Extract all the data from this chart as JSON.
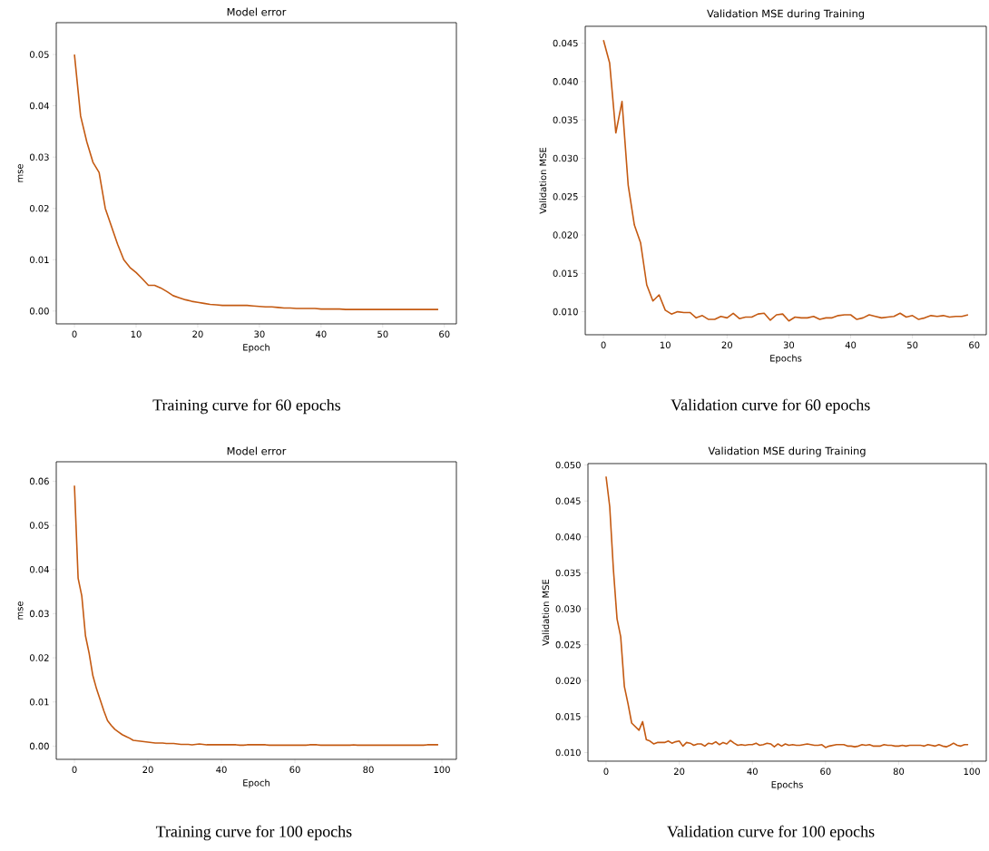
{
  "chart_data": [
    {
      "type": "line",
      "title": "Model error",
      "xlabel": "Epoch",
      "ylabel": "mse",
      "color": "#c45a12",
      "annotations": [
        "Training curve for 60 epochs"
      ],
      "xlim": [
        -2.95,
        61.95
      ],
      "ylim": [
        -0.0025,
        0.0562
      ],
      "xticks": [
        0,
        10,
        20,
        30,
        40,
        50,
        60
      ],
      "yticks": [
        {
          "value": 0,
          "label": "0.00"
        },
        {
          "value": 0.01,
          "label": "0.01"
        },
        {
          "value": 0.02,
          "label": "0.02"
        },
        {
          "value": 0.03,
          "label": "0.03"
        },
        {
          "value": 0.04,
          "label": "0.04"
        },
        {
          "value": 0.05,
          "label": "0.05"
        }
      ],
      "x": [
        0,
        1,
        2,
        3,
        4,
        5,
        6,
        7,
        8,
        9,
        10,
        11,
        12,
        13,
        14,
        15,
        16,
        17,
        18,
        19,
        20,
        21,
        22,
        23,
        24,
        25,
        26,
        27,
        28,
        29,
        30,
        31,
        32,
        33,
        34,
        35,
        36,
        37,
        38,
        39,
        40,
        41,
        42,
        43,
        44,
        45,
        46,
        47,
        48,
        49,
        50,
        51,
        52,
        53,
        54,
        55,
        56,
        57,
        58,
        59
      ],
      "values": [
        0.05,
        0.038,
        0.033,
        0.029,
        0.027,
        0.02,
        0.0165,
        0.013,
        0.01,
        0.0085,
        0.0075,
        0.0063,
        0.005,
        0.005,
        0.0045,
        0.0038,
        0.003,
        0.0026,
        0.0022,
        0.0019,
        0.0017,
        0.0015,
        0.0013,
        0.0012,
        0.0011,
        0.0011,
        0.0011,
        0.0011,
        0.0011,
        0.001,
        0.0009,
        0.0008,
        0.0008,
        0.0007,
        0.0006,
        0.0006,
        0.0005,
        0.0005,
        0.0005,
        0.0005,
        0.0004,
        0.0004,
        0.0004,
        0.0004,
        0.0003,
        0.0003,
        0.0003,
        0.0003,
        0.0003,
        0.0003,
        0.0003,
        0.0003,
        0.0003,
        0.0003,
        0.0003,
        0.0003,
        0.0003,
        0.0003,
        0.0003,
        0.0003
      ]
    },
    {
      "type": "line",
      "title": "Validation MSE during Training",
      "xlabel": "Epochs",
      "ylabel": "Validation MSE",
      "color": "#c45a12",
      "annotations": [
        "Validation curve for 60 epochs"
      ],
      "xlim": [
        -2.95,
        61.95
      ],
      "ylim": [
        0.007,
        0.0472
      ],
      "xticks": [
        0,
        10,
        20,
        30,
        40,
        50,
        60
      ],
      "yticks": [
        {
          "value": 0.01,
          "label": "0.010"
        },
        {
          "value": 0.015,
          "label": "0.015"
        },
        {
          "value": 0.02,
          "label": "0.020"
        },
        {
          "value": 0.025,
          "label": "0.025"
        },
        {
          "value": 0.03,
          "label": "0.030"
        },
        {
          "value": 0.035,
          "label": "0.035"
        },
        {
          "value": 0.04,
          "label": "0.040"
        },
        {
          "value": 0.045,
          "label": "0.045"
        }
      ],
      "x": [
        0,
        1,
        2,
        3,
        4,
        5,
        6,
        7,
        8,
        9,
        10,
        11,
        12,
        13,
        14,
        15,
        16,
        17,
        18,
        19,
        20,
        21,
        22,
        23,
        24,
        25,
        26,
        27,
        28,
        29,
        30,
        31,
        32,
        33,
        34,
        35,
        36,
        37,
        38,
        39,
        40,
        41,
        42,
        43,
        44,
        45,
        46,
        47,
        48,
        49,
        50,
        51,
        52,
        53,
        54,
        55,
        56,
        57,
        58,
        59
      ],
      "values": [
        0.0454,
        0.0424,
        0.0333,
        0.0374,
        0.0265,
        0.0213,
        0.019,
        0.0135,
        0.0114,
        0.0122,
        0.0102,
        0.0097,
        0.01,
        0.0099,
        0.0099,
        0.0092,
        0.0095,
        0.009,
        0.009,
        0.0094,
        0.0092,
        0.0098,
        0.0091,
        0.0093,
        0.0093,
        0.0097,
        0.0098,
        0.0089,
        0.0096,
        0.0097,
        0.0088,
        0.0093,
        0.0092,
        0.0092,
        0.0094,
        0.009,
        0.0092,
        0.0092,
        0.0095,
        0.0096,
        0.0096,
        0.009,
        0.0092,
        0.0096,
        0.0094,
        0.0092,
        0.0093,
        0.0094,
        0.0098,
        0.0093,
        0.0095,
        0.009,
        0.0092,
        0.0095,
        0.0094,
        0.0095,
        0.0093,
        0.0094,
        0.0094,
        0.0096
      ]
    },
    {
      "type": "line",
      "title": "Model error",
      "xlabel": "Epoch",
      "ylabel": "mse",
      "color": "#c45a12",
      "annotations": [
        "Training curve for 100 epochs"
      ],
      "xlim": [
        -4.95,
        103.95
      ],
      "ylim": [
        -0.003,
        0.0644
      ],
      "xticks": [
        0,
        20,
        40,
        60,
        80,
        100
      ],
      "yticks": [
        {
          "value": 0,
          "label": "0.00"
        },
        {
          "value": 0.01,
          "label": "0.01"
        },
        {
          "value": 0.02,
          "label": "0.02"
        },
        {
          "value": 0.03,
          "label": "0.03"
        },
        {
          "value": 0.04,
          "label": "0.04"
        },
        {
          "value": 0.05,
          "label": "0.05"
        },
        {
          "value": 0.06,
          "label": "0.06"
        }
      ],
      "x": [
        0,
        1,
        2,
        3,
        4,
        5,
        6,
        7,
        8,
        9,
        10,
        11,
        12,
        13,
        14,
        15,
        16,
        17,
        18,
        19,
        20,
        21,
        22,
        23,
        24,
        25,
        26,
        27,
        28,
        29,
        30,
        31,
        32,
        33,
        34,
        35,
        36,
        37,
        38,
        39,
        40,
        41,
        42,
        43,
        44,
        45,
        46,
        47,
        48,
        49,
        50,
        51,
        52,
        53,
        54,
        55,
        56,
        57,
        58,
        59,
        60,
        61,
        62,
        63,
        64,
        65,
        66,
        67,
        68,
        69,
        70,
        71,
        72,
        73,
        74,
        75,
        76,
        77,
        78,
        79,
        80,
        81,
        82,
        83,
        84,
        85,
        86,
        87,
        88,
        89,
        90,
        91,
        92,
        93,
        94,
        95,
        96,
        97,
        98,
        99
      ],
      "values": [
        0.059,
        0.038,
        0.034,
        0.025,
        0.021,
        0.016,
        0.013,
        0.0105,
        0.008,
        0.0058,
        0.0047,
        0.0038,
        0.0032,
        0.0026,
        0.0022,
        0.0018,
        0.0013,
        0.0012,
        0.0011,
        0.001,
        0.0009,
        0.0008,
        0.0007,
        0.0007,
        0.0007,
        0.0006,
        0.0006,
        0.0006,
        0.0005,
        0.0004,
        0.0004,
        0.0004,
        0.0003,
        0.0004,
        0.0005,
        0.0004,
        0.0003,
        0.0003,
        0.0003,
        0.0003,
        0.0003,
        0.0003,
        0.0003,
        0.0003,
        0.0003,
        0.0002,
        0.0002,
        0.0003,
        0.0003,
        0.0003,
        0.0003,
        0.0003,
        0.0003,
        0.0002,
        0.0002,
        0.0002,
        0.0002,
        0.0002,
        0.0002,
        0.0002,
        0.0002,
        0.0002,
        0.0002,
        0.0002,
        0.0003,
        0.0003,
        0.0003,
        0.0002,
        0.0002,
        0.0002,
        0.0002,
        0.0002,
        0.0002,
        0.0002,
        0.0002,
        0.0002,
        0.0003,
        0.0002,
        0.0002,
        0.0002,
        0.0002,
        0.0002,
        0.0002,
        0.0002,
        0.0002,
        0.0002,
        0.0002,
        0.0002,
        0.0002,
        0.0002,
        0.0002,
        0.0002,
        0.0002,
        0.0002,
        0.0002,
        0.0002,
        0.0003,
        0.0003,
        0.0003,
        0.0003
      ]
    },
    {
      "type": "line",
      "title": "Validation MSE during Training",
      "xlabel": "Epochs",
      "ylabel": "Validation MSE",
      "color": "#c45a12",
      "annotations": [
        "Validation curve for 100 epochs"
      ],
      "xlim": [
        -4.95,
        103.95
      ],
      "ylim": [
        0.0088,
        0.0502
      ],
      "xticks": [
        0,
        20,
        40,
        60,
        80,
        100
      ],
      "yticks": [
        {
          "value": 0.01,
          "label": "0.010"
        },
        {
          "value": 0.015,
          "label": "0.015"
        },
        {
          "value": 0.02,
          "label": "0.020"
        },
        {
          "value": 0.025,
          "label": "0.025"
        },
        {
          "value": 0.03,
          "label": "0.030"
        },
        {
          "value": 0.035,
          "label": "0.035"
        },
        {
          "value": 0.04,
          "label": "0.040"
        },
        {
          "value": 0.045,
          "label": "0.045"
        },
        {
          "value": 0.05,
          "label": "0.050"
        }
      ],
      "x": [
        0,
        1,
        2,
        3,
        4,
        5,
        6,
        7,
        8,
        9,
        10,
        11,
        12,
        13,
        14,
        15,
        16,
        17,
        18,
        19,
        20,
        21,
        22,
        23,
        24,
        25,
        26,
        27,
        28,
        29,
        30,
        31,
        32,
        33,
        34,
        35,
        36,
        37,
        38,
        39,
        40,
        41,
        42,
        43,
        44,
        45,
        46,
        47,
        48,
        49,
        50,
        51,
        52,
        53,
        54,
        55,
        56,
        57,
        58,
        59,
        60,
        61,
        62,
        63,
        64,
        65,
        66,
        67,
        68,
        69,
        70,
        71,
        72,
        73,
        74,
        75,
        76,
        77,
        78,
        79,
        80,
        81,
        82,
        83,
        84,
        85,
        86,
        87,
        88,
        89,
        90,
        91,
        92,
        93,
        94,
        95,
        96,
        97,
        98,
        99
      ],
      "values": [
        0.0484,
        0.0442,
        0.0355,
        0.0286,
        0.0261,
        0.0192,
        0.0168,
        0.0141,
        0.0136,
        0.0131,
        0.0143,
        0.0118,
        0.0116,
        0.0112,
        0.0114,
        0.0114,
        0.0114,
        0.0116,
        0.0113,
        0.0115,
        0.0116,
        0.0109,
        0.0114,
        0.0113,
        0.011,
        0.0112,
        0.0112,
        0.0109,
        0.0113,
        0.0112,
        0.0115,
        0.0111,
        0.0114,
        0.0112,
        0.0117,
        0.0113,
        0.011,
        0.0111,
        0.011,
        0.0111,
        0.0111,
        0.0113,
        0.011,
        0.0111,
        0.0113,
        0.0112,
        0.0108,
        0.0112,
        0.0109,
        0.0112,
        0.011,
        0.0111,
        0.011,
        0.011,
        0.0111,
        0.0112,
        0.0111,
        0.011,
        0.011,
        0.0111,
        0.0107,
        0.0109,
        0.011,
        0.0111,
        0.0111,
        0.0111,
        0.0109,
        0.0109,
        0.0108,
        0.0109,
        0.0111,
        0.011,
        0.0111,
        0.0109,
        0.0109,
        0.0109,
        0.0111,
        0.011,
        0.011,
        0.0109,
        0.0109,
        0.011,
        0.0109,
        0.011,
        0.011,
        0.011,
        0.011,
        0.0109,
        0.0111,
        0.011,
        0.0109,
        0.0111,
        0.0109,
        0.0108,
        0.011,
        0.0113,
        0.011,
        0.0109,
        0.0111,
        0.0111
      ]
    }
  ]
}
